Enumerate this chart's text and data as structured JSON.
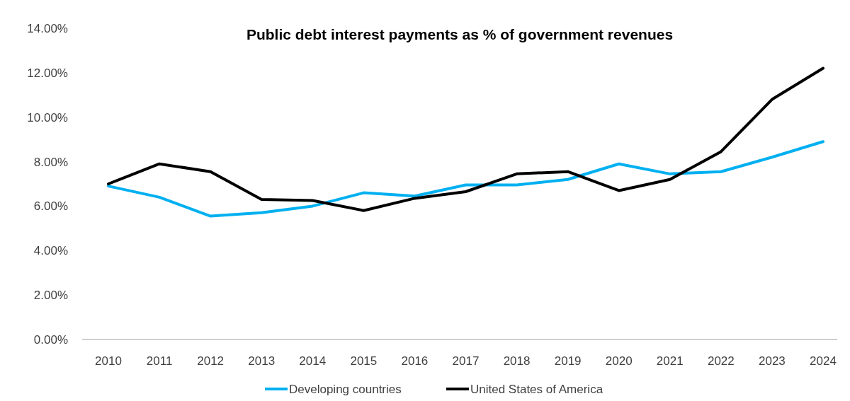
{
  "chart_data": {
    "type": "line",
    "title": "Public debt interest payments as % of government revenues",
    "categories": [
      "2010",
      "2011",
      "2012",
      "2013",
      "2014",
      "2015",
      "2016",
      "2017",
      "2018",
      "2019",
      "2020",
      "2021",
      "2022",
      "2023",
      "2024"
    ],
    "series": [
      {
        "name": "Developing countries",
        "color": "#00b0f0",
        "values": [
          6.9,
          6.4,
          5.55,
          5.7,
          6.0,
          6.6,
          6.45,
          6.95,
          6.95,
          7.2,
          7.9,
          7.45,
          7.55,
          8.2,
          8.9
        ]
      },
      {
        "name": "United States of America",
        "color": "#000000",
        "values": [
          7.0,
          7.9,
          7.55,
          6.3,
          6.25,
          5.8,
          6.35,
          6.65,
          7.45,
          7.55,
          6.7,
          7.2,
          8.45,
          10.8,
          12.2
        ]
      }
    ],
    "ylim": [
      0,
      14
    ],
    "yticks": [
      {
        "value": 0,
        "label": "0.00%"
      },
      {
        "value": 2,
        "label": "2.00%"
      },
      {
        "value": 4,
        "label": "4.00%"
      },
      {
        "value": 6,
        "label": "6.00%"
      },
      {
        "value": 8,
        "label": "8.00%"
      },
      {
        "value": 10,
        "label": "10.00%"
      },
      {
        "value": 12,
        "label": "12.00%"
      },
      {
        "value": 14,
        "label": "14.00%"
      }
    ],
    "grid": false,
    "legend": "bottom",
    "line_style": "solid",
    "marker": "none"
  }
}
